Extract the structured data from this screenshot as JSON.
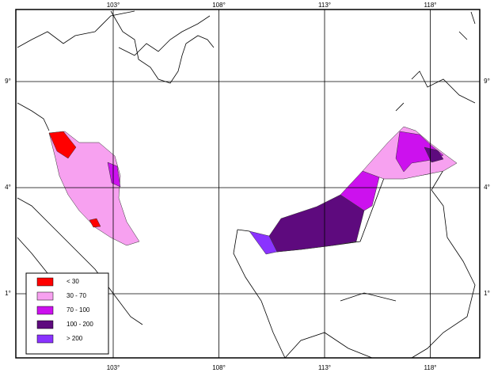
{
  "map": {
    "lon_ticks": [
      "103°",
      "108°",
      "113°",
      "118°"
    ],
    "lat_ticks": [
      "9°",
      "4°",
      "1°"
    ],
    "legend": [
      {
        "label": "< 30",
        "color": "#ff0000"
      },
      {
        "label": "30 - 70",
        "color": "#f7a1f0"
      },
      {
        "label": "70 - 100",
        "color": "#cc11ee"
      },
      {
        "label": "100 - 200",
        "color": "#5e0a7e"
      },
      {
        "label": "> 200",
        "color": "#8a33ff"
      }
    ]
  }
}
